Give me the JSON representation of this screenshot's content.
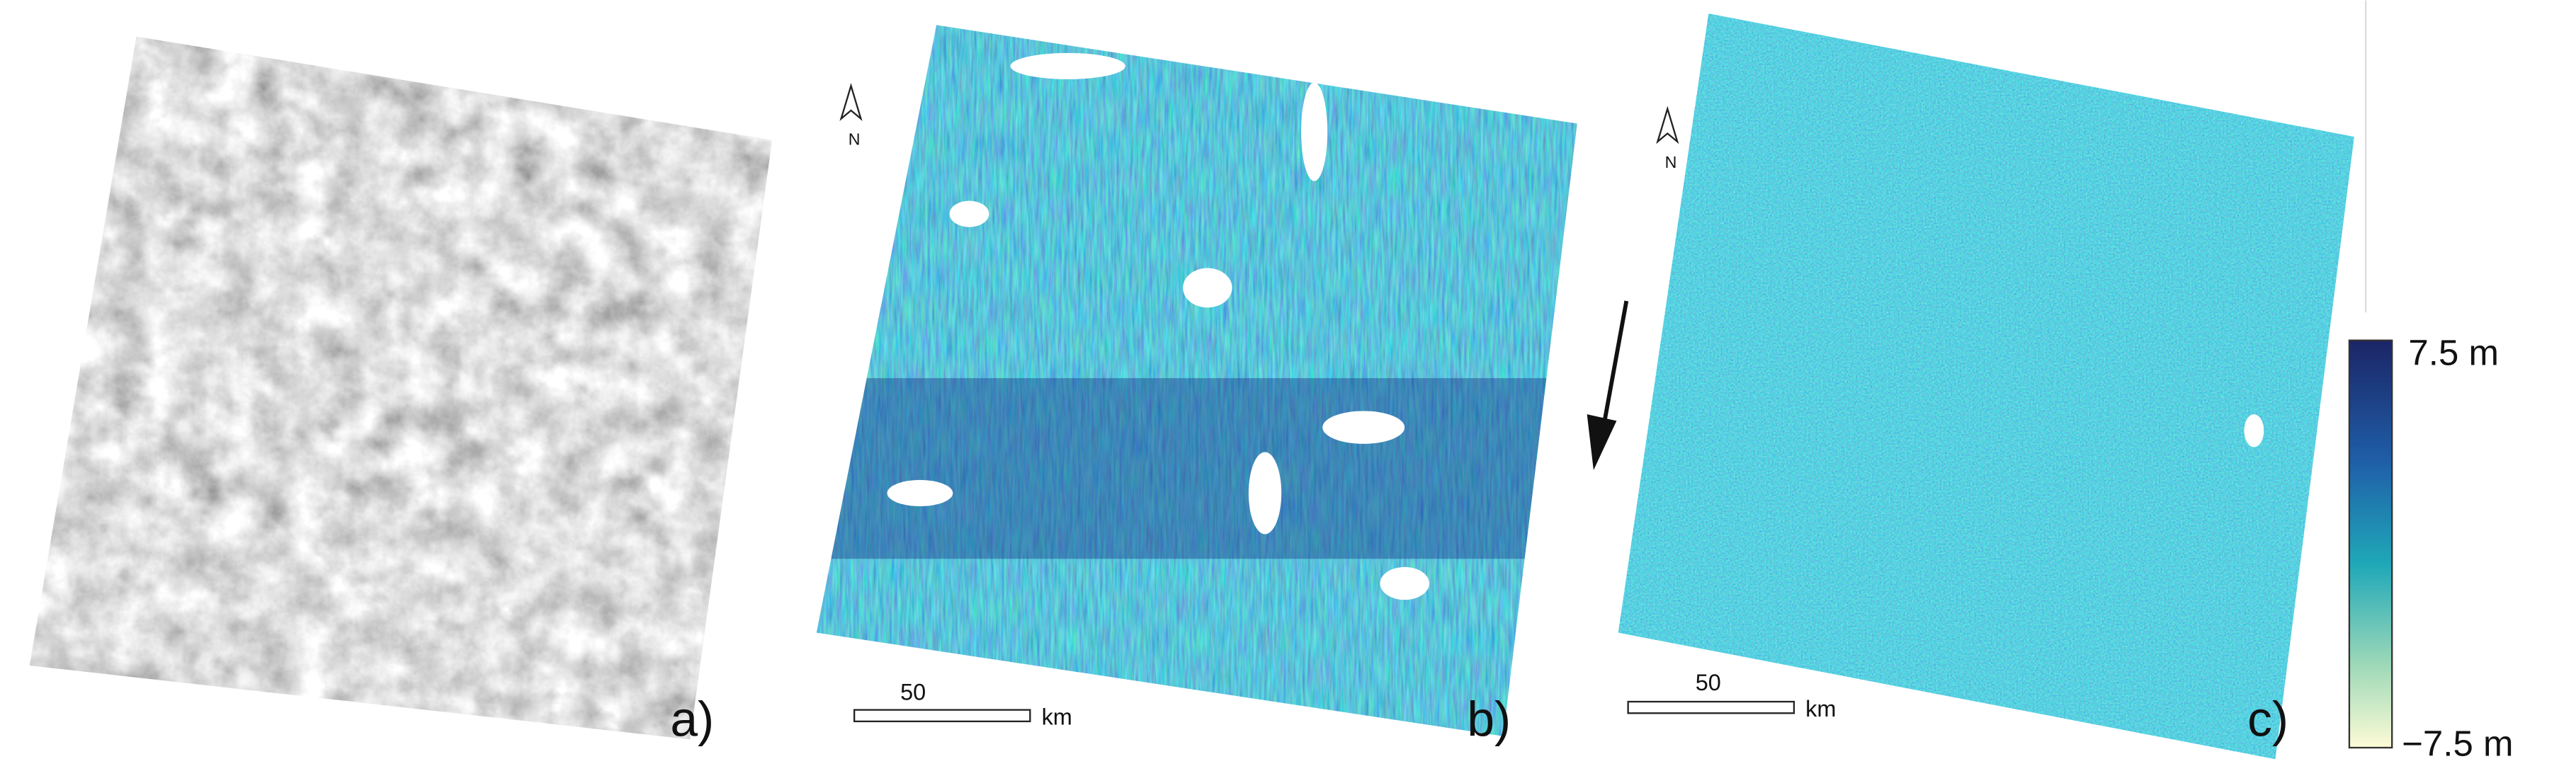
{
  "panels": [
    {
      "label": "a)"
    },
    {
      "label": "b)",
      "north": "N",
      "scale_bar": {
        "length": "50",
        "unit": "km"
      }
    },
    {
      "label": "c)",
      "north": "N",
      "scale_bar": {
        "length": "50",
        "unit": "km"
      }
    }
  ],
  "colorbar": {
    "max_label": "7.5 m",
    "min_label": "−7.5 m"
  }
}
